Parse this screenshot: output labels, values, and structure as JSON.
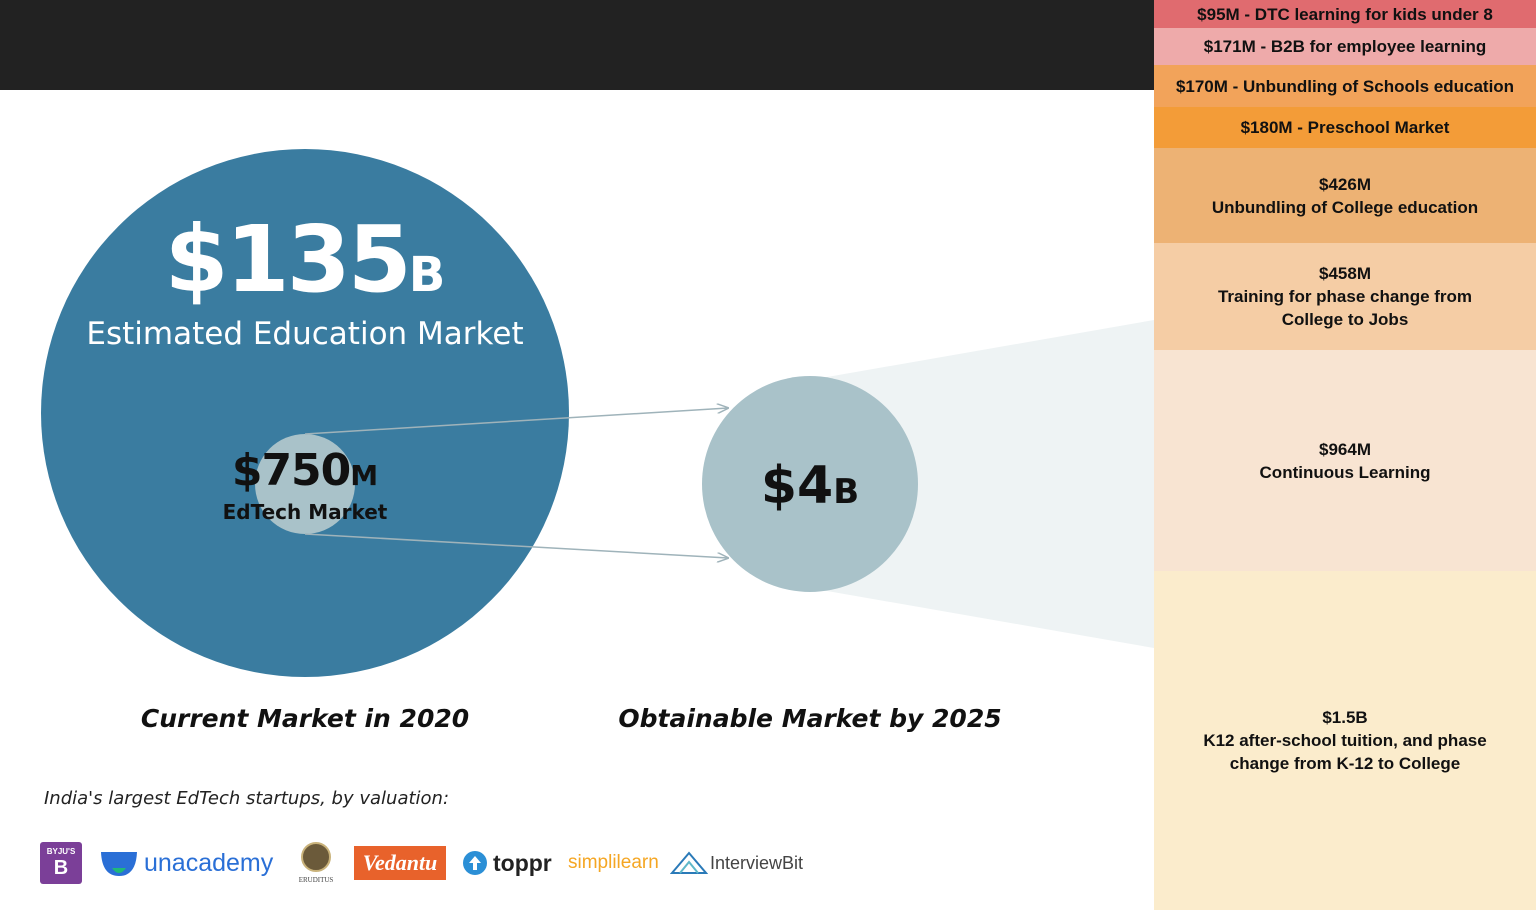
{
  "main_circle": {
    "amount": "$135",
    "unit": "B",
    "label": "Estimated Education Market",
    "color": "#3a7ca0"
  },
  "edtech_circle": {
    "amount": "$750",
    "unit": "M",
    "label": "EdTech Market",
    "color": "#a9c2c9"
  },
  "obtainable_circle": {
    "amount": "$4",
    "unit": "B",
    "color": "#a9c2c9"
  },
  "captions": {
    "current": "Current Market in 2020",
    "obtainable": "Obtainable Market by 2025"
  },
  "startups": {
    "heading": "India's largest EdTech startups, by valuation:",
    "logos": [
      {
        "name": "BYJU'S",
        "icon": "byjus-logo",
        "color": "#7b3f98"
      },
      {
        "name": "unacademy",
        "icon": "unacademy-logo",
        "color": "#2a6fd6"
      },
      {
        "name": "ERUDITUS",
        "icon": "eruditus-logo",
        "color": "#555555"
      },
      {
        "name": "Vedantu",
        "icon": "vedantu-logo",
        "color": "#e8622b"
      },
      {
        "name": "toppr",
        "icon": "toppr-logo",
        "color": "#2b8fd6"
      },
      {
        "name": "simplilearn",
        "icon": "simplilearn-logo",
        "color": "#f5a623"
      },
      {
        "name": "InterviewBit",
        "icon": "interviewbit-logo",
        "color": "#2a7ab8"
      }
    ]
  },
  "segments": [
    {
      "lines": [
        "$95M - DTC learning for kids under 8"
      ],
      "color": "#e06b6f"
    },
    {
      "lines": [
        "$171M - B2B for employee learning"
      ],
      "color": "#eeaaaa"
    },
    {
      "lines": [
        "$170M - Unbundling of Schools education"
      ],
      "color": "#f2a35a"
    },
    {
      "lines": [
        "$180M - Preschool Market"
      ],
      "color": "#f39c38"
    },
    {
      "lines": [
        "$426M",
        "Unbundling of College education"
      ],
      "color": "#edb274"
    },
    {
      "lines": [
        "$458M",
        "Training for phase change from",
        "College to Jobs"
      ],
      "color": "#f5cda5"
    },
    {
      "lines": [
        "$964M",
        "Continuous Learning"
      ],
      "color": "#f8e4d2"
    },
    {
      "lines": [
        "$1.5B",
        "K12 after-school tuition, and phase",
        "change from K-12 to College"
      ],
      "color": "#fbeccc"
    }
  ]
}
